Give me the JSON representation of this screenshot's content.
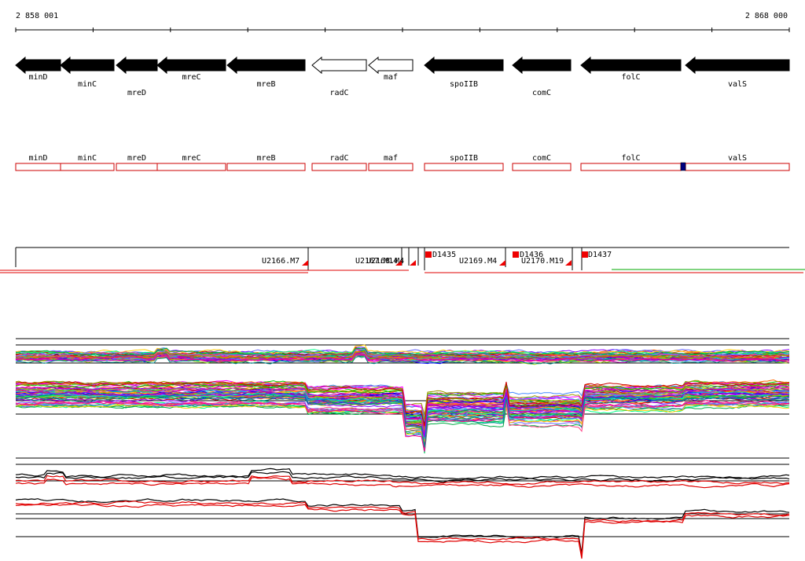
{
  "ruler": {
    "start_label": "2 858 001",
    "end_label": "2 868 000"
  },
  "genes": [
    {
      "name": "minD",
      "strand": "reverse",
      "filled": true
    },
    {
      "name": "minC",
      "strand": "reverse",
      "filled": true
    },
    {
      "name": "mreD",
      "strand": "reverse",
      "filled": true
    },
    {
      "name": "mreC",
      "strand": "reverse",
      "filled": true
    },
    {
      "name": "mreB",
      "strand": "reverse",
      "filled": true
    },
    {
      "name": "radC",
      "strand": "reverse",
      "filled": false
    },
    {
      "name": "maf",
      "strand": "reverse",
      "filled": false
    },
    {
      "name": "spoIIB",
      "strand": "reverse",
      "filled": true
    },
    {
      "name": "comC",
      "strand": "reverse",
      "filled": true
    },
    {
      "name": "folC",
      "strand": "reverse",
      "filled": true
    },
    {
      "name": "valS",
      "strand": "reverse",
      "filled": true
    }
  ],
  "features": [
    {
      "label": "U2166.M7"
    },
    {
      "label": "U2167.M14"
    },
    {
      "label": "U2168.M4"
    },
    {
      "label": "D1435"
    },
    {
      "label": "U2169.M4"
    },
    {
      "label": "D1436"
    },
    {
      "label": "U2170.M19"
    },
    {
      "label": "D1437"
    }
  ],
  "colors": {
    "gene_fill": "#000000",
    "gene_outline_box": "#cc0000",
    "feature_marker": "#ee0000",
    "highlight_marker": "#000080",
    "reference_line": "#000000",
    "red_trace": "#e00000",
    "green_trace": "#00aa00"
  }
}
